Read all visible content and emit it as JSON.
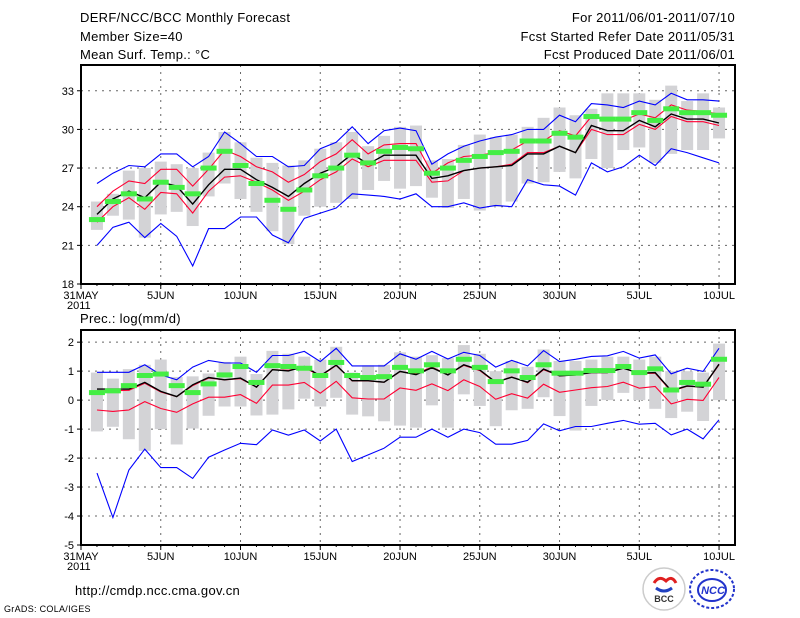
{
  "header": {
    "title": "DERF/NCC/BCC Monthly Forecast",
    "member_size": "Member Size=40",
    "variable": "Mean Surf. Temp.: °C",
    "period": "For 2011/06/01-2011/07/10",
    "started": "Fcst Started Refer Date 2011/05/31",
    "produced": "Fcst Produced Date 2011/06/01"
  },
  "footer": {
    "url": "http://cmdp.ncc.cma.gov.cn",
    "credit": "GrADS: COLA/IGES",
    "logo_bcc": "BCC",
    "logo_ncc": "NCC"
  },
  "colors": {
    "max_min": "#0000ff",
    "spread": "#ff0033",
    "mean": "#000000",
    "green": "#44ee44",
    "box": "#d3d3d6"
  },
  "chart_data": [
    {
      "type": "line",
      "title": "Mean Surf. Temp.: °C",
      "xlabel": "",
      "ylabel": "",
      "x_ticks": [
        "31MAY",
        "5JUN",
        "10JUN",
        "15JUN",
        "20JUN",
        "25JUN",
        "30JUN",
        "5JUL",
        "10JUL"
      ],
      "x_year_label": "2011",
      "y_ticks": [
        18,
        21,
        24,
        27,
        30,
        33
      ],
      "ylim": [
        18,
        35
      ],
      "xlim_days": [
        0,
        41
      ],
      "grid": true,
      "days": "1..40 = Jun 1 .. Jul 10",
      "series": [
        {
          "name": "max",
          "color": "#0000ff",
          "values": [
            25.8,
            26.6,
            27.2,
            27.1,
            28.1,
            28.1,
            27.1,
            27.9,
            29.8,
            28.9,
            27.9,
            27.9,
            27.1,
            27.2,
            28.5,
            29.0,
            30.2,
            28.9,
            29.9,
            30.1,
            29.9,
            27.3,
            28.1,
            28.7,
            29.1,
            29.4,
            29.6,
            30.0,
            30.0,
            31.1,
            30.6,
            32.0,
            31.9,
            31.7,
            32.2,
            31.9,
            32.8,
            32.3,
            32.3,
            32.2
          ]
        },
        {
          "name": "min",
          "color": "#0000ff",
          "values": [
            21.0,
            22.4,
            22.8,
            21.6,
            22.7,
            21.7,
            19.4,
            22.3,
            22.3,
            23.2,
            23.2,
            21.8,
            21.2,
            23.1,
            23.5,
            23.9,
            25.0,
            24.9,
            24.8,
            24.6,
            25.0,
            24.0,
            24.0,
            24.3,
            23.9,
            24.1,
            24.0,
            26.1,
            25.7,
            25.6,
            24.9,
            27.4,
            26.7,
            27.1,
            28.0,
            27.2,
            28.5,
            28.2,
            27.8,
            27.4
          ]
        },
        {
          "name": "upper",
          "color": "#ff0033",
          "values": [
            24.0,
            25.2,
            26.0,
            25.8,
            26.9,
            26.9,
            25.6,
            26.9,
            28.4,
            27.9,
            27.1,
            26.7,
            25.9,
            26.5,
            27.5,
            28.1,
            29.2,
            28.1,
            28.8,
            28.9,
            28.9,
            26.6,
            27.4,
            27.9,
            28.0,
            28.2,
            28.4,
            29.1,
            29.1,
            29.9,
            29.5,
            31.0,
            30.7,
            30.7,
            31.2,
            30.9,
            31.9,
            31.5,
            31.4,
            31.2
          ]
        },
        {
          "name": "lower",
          "color": "#ff0033",
          "values": [
            22.8,
            24.0,
            24.7,
            23.8,
            25.1,
            25.0,
            23.5,
            25.2,
            26.3,
            26.4,
            25.9,
            25.3,
            24.5,
            25.2,
            26.1,
            26.7,
            27.7,
            27.1,
            27.6,
            27.6,
            27.6,
            25.9,
            26.0,
            26.8,
            27.0,
            27.1,
            27.3,
            28.2,
            28.2,
            28.7,
            28.2,
            30.0,
            29.6,
            29.6,
            30.4,
            30.0,
            31.0,
            30.6,
            30.6,
            30.3
          ]
        },
        {
          "name": "mean",
          "color": "#000000",
          "values": [
            23.4,
            24.6,
            25.2,
            24.7,
            25.9,
            25.6,
            24.2,
            25.7,
            26.9,
            26.9,
            26.1,
            25.5,
            24.8,
            25.8,
            26.6,
            27.1,
            28.1,
            27.3,
            28.0,
            28.0,
            28.0,
            26.2,
            26.4,
            26.8,
            27.0,
            27.1,
            27.2,
            28.1,
            28.1,
            28.7,
            28.2,
            30.3,
            29.9,
            29.9,
            30.7,
            30.2,
            31.2,
            30.8,
            30.8,
            30.5
          ]
        },
        {
          "name": "green",
          "color": "#44ee44",
          "values": [
            23.0,
            24.4,
            25.0,
            24.6,
            25.9,
            25.5,
            25.0,
            27.0,
            28.3,
            27.2,
            25.8,
            24.5,
            23.8,
            25.3,
            26.4,
            27.0,
            28.0,
            27.4,
            28.3,
            28.6,
            28.5,
            26.6,
            27.0,
            27.6,
            27.9,
            28.2,
            28.3,
            29.1,
            29.1,
            29.7,
            29.4,
            31.0,
            30.8,
            30.8,
            31.3,
            30.7,
            31.6,
            31.3,
            31.3,
            31.1
          ]
        }
      ],
      "boxes": [
        [
          22.2,
          24.4
        ],
        [
          23.3,
          25.0
        ],
        [
          23.0,
          26.8
        ],
        [
          21.6,
          27.0
        ],
        [
          23.4,
          27.5
        ],
        [
          23.6,
          27.3
        ],
        [
          22.5,
          27.0
        ],
        [
          24.8,
          28.2
        ],
        [
          25.8,
          29.8
        ],
        [
          24.6,
          29.0
        ],
        [
          23.6,
          27.8
        ],
        [
          22.1,
          27.4
        ],
        [
          21.1,
          27.2
        ],
        [
          23.3,
          27.6
        ],
        [
          24.0,
          28.5
        ],
        [
          24.3,
          29.0
        ],
        [
          24.6,
          29.8
        ],
        [
          25.3,
          28.7
        ],
        [
          26.0,
          29.5
        ],
        [
          25.4,
          30.2
        ],
        [
          25.6,
          30.3
        ],
        [
          24.7,
          27.6
        ],
        [
          23.9,
          27.7
        ],
        [
          24.6,
          28.8
        ],
        [
          23.7,
          29.6
        ],
        [
          24.0,
          29.4
        ],
        [
          24.4,
          29.6
        ],
        [
          25.8,
          30.2
        ],
        [
          25.9,
          30.9
        ],
        [
          26.7,
          31.7
        ],
        [
          26.2,
          31.1
        ],
        [
          27.7,
          31.6
        ],
        [
          27.0,
          32.8
        ],
        [
          28.4,
          32.8
        ],
        [
          28.6,
          32.8
        ],
        [
          27.4,
          32.3
        ],
        [
          28.1,
          33.4
        ],
        [
          28.4,
          32.2
        ],
        [
          28.4,
          32.8
        ],
        [
          29.3,
          31.7
        ]
      ]
    },
    {
      "type": "line",
      "title": "Prec.: log(mm/d)",
      "xlabel": "",
      "ylabel": "",
      "x_ticks": [
        "31MAY",
        "5JUN",
        "10JUN",
        "15JUN",
        "20JUN",
        "25JUN",
        "30JUN",
        "5JUL",
        "10JUL"
      ],
      "x_year_label": "2011",
      "y_ticks": [
        -5,
        -4,
        -3,
        -2,
        -1,
        0,
        1,
        2
      ],
      "ylim": [
        -5,
        2.42
      ],
      "xlim_days": [
        0,
        41
      ],
      "grid": true,
      "days": "1..40 = Jun 1 .. Jul 10",
      "series": [
        {
          "name": "max",
          "color": "#0000ff",
          "values": [
            0.96,
            0.96,
            0.96,
            1.22,
            0.87,
            0.7,
            1.14,
            1.37,
            1.28,
            1.28,
            0.96,
            1.54,
            1.54,
            1.68,
            1.33,
            1.79,
            1.18,
            1.18,
            1.18,
            1.6,
            1.41,
            1.68,
            1.42,
            1.65,
            1.54,
            1.14,
            1.37,
            1.18,
            1.71,
            1.33,
            1.41,
            1.51,
            1.53,
            1.68,
            1.45,
            1.56,
            0.91,
            1.1,
            0.99,
            1.79
          ]
        },
        {
          "name": "min",
          "color": "#0000ff",
          "values": [
            -2.52,
            -4.05,
            -2.41,
            -1.69,
            -2.33,
            -2.33,
            -2.7,
            -1.97,
            -1.72,
            -1.49,
            -1.54,
            -1.03,
            -1.21,
            -1.03,
            -1.41,
            -1.0,
            -2.12,
            -1.89,
            -1.66,
            -1.28,
            -1.28,
            -1.0,
            -1.28,
            -1.0,
            -1.12,
            -1.52,
            -1.52,
            -1.39,
            -0.82,
            -1.06,
            -0.91,
            -0.91,
            -0.8,
            -0.7,
            -0.83,
            -0.8,
            -1.2,
            -1.0,
            -1.34,
            -0.68
          ]
        },
        {
          "name": "upper",
          "color": "#ff0033",
          "values": [
            0.32,
            0.32,
            0.34,
            0.58,
            0.28,
            0.12,
            0.5,
            0.76,
            0.7,
            0.74,
            0.45,
            1.05,
            1.03,
            1.14,
            0.82,
            1.2,
            0.66,
            0.66,
            0.62,
            0.98,
            0.92,
            1.14,
            0.88,
            1.2,
            1.02,
            0.6,
            0.8,
            0.6,
            1.05,
            0.84,
            0.87,
            0.95,
            0.95,
            1.12,
            0.92,
            0.93,
            0.3,
            0.48,
            0.45,
            1.22
          ]
        },
        {
          "name": "lower",
          "color": "#ff0033",
          "values": [
            -0.34,
            -0.39,
            -0.34,
            -0.05,
            -0.29,
            -0.42,
            -0.13,
            0.1,
            0.1,
            0.19,
            -0.11,
            0.52,
            0.52,
            0.61,
            0.24,
            0.65,
            0.08,
            0.04,
            0.04,
            0.42,
            0.34,
            0.56,
            0.33,
            0.7,
            0.47,
            0.03,
            0.22,
            0.07,
            0.55,
            0.27,
            0.35,
            0.43,
            0.47,
            0.62,
            0.41,
            0.47,
            -0.13,
            0.03,
            -0.01,
            0.78
          ]
        },
        {
          "name": "mean",
          "color": "#000000",
          "values": [
            0.38,
            0.38,
            0.38,
            0.61,
            0.3,
            0.12,
            0.53,
            0.78,
            0.7,
            0.76,
            0.45,
            1.05,
            1.01,
            1.16,
            0.84,
            1.21,
            0.67,
            0.67,
            0.62,
            0.99,
            0.88,
            1.12,
            0.87,
            1.22,
            1.04,
            0.62,
            0.79,
            0.62,
            1.07,
            0.84,
            0.87,
            0.95,
            0.95,
            1.1,
            0.93,
            0.95,
            0.33,
            0.49,
            0.45,
            1.24
          ]
        },
        {
          "name": "green",
          "color": "#44ee44",
          "values": [
            0.26,
            0.32,
            0.5,
            0.85,
            0.9,
            0.5,
            0.26,
            0.56,
            0.87,
            1.16,
            0.61,
            1.19,
            1.16,
            1.1,
            0.85,
            1.3,
            0.85,
            0.78,
            0.81,
            1.13,
            1.01,
            1.22,
            1.01,
            1.41,
            1.13,
            0.64,
            1.01,
            0.78,
            1.22,
            0.93,
            0.93,
            1.02,
            1.02,
            1.16,
            0.95,
            1.08,
            0.35,
            0.61,
            0.55,
            1.41
          ]
        }
      ],
      "boxes": [
        [
          -1.08,
          0.95
        ],
        [
          -0.92,
          0.74
        ],
        [
          -1.35,
          1.07
        ],
        [
          -1.75,
          1.22
        ],
        [
          -1.0,
          1.4
        ],
        [
          -1.53,
          0.8
        ],
        [
          -0.98,
          0.82
        ],
        [
          -0.54,
          0.92
        ],
        [
          -0.22,
          1.32
        ],
        [
          -0.22,
          1.5
        ],
        [
          -0.53,
          0.9
        ],
        [
          -0.5,
          1.7
        ],
        [
          -0.32,
          1.6
        ],
        [
          0.05,
          1.5
        ],
        [
          -0.22,
          1.4
        ],
        [
          0.08,
          1.84
        ],
        [
          -0.5,
          0.95
        ],
        [
          -0.56,
          1.2
        ],
        [
          -0.73,
          1.22
        ],
        [
          -0.88,
          1.65
        ],
        [
          -0.95,
          1.5
        ],
        [
          -0.18,
          1.55
        ],
        [
          -0.95,
          1.45
        ],
        [
          0.2,
          1.9
        ],
        [
          -0.2,
          1.6
        ],
        [
          -0.9,
          1.0
        ],
        [
          -0.35,
          1.35
        ],
        [
          -0.3,
          1.15
        ],
        [
          0.1,
          1.75
        ],
        [
          -0.55,
          1.35
        ],
        [
          -1.05,
          1.35
        ],
        [
          -0.2,
          1.4
        ],
        [
          0.0,
          1.5
        ],
        [
          0.25,
          1.5
        ],
        [
          0.0,
          1.4
        ],
        [
          -0.3,
          1.5
        ],
        [
          -0.62,
          1.0
        ],
        [
          -0.4,
          1.0
        ],
        [
          -0.72,
          0.95
        ],
        [
          0.0,
          1.95
        ]
      ]
    }
  ]
}
